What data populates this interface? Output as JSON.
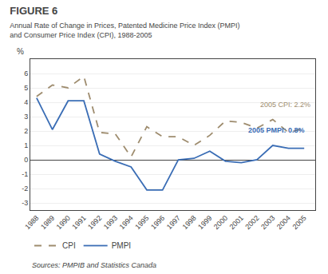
{
  "chart_data": {
    "type": "line",
    "title": "FIGURE 6",
    "subtitle": [
      "Annual Rate of Change in Prices, Patented Medicine Price Index (PMPI)",
      "and Consumer Price Index (CPI), 1988-2005"
    ],
    "ylabel": "%",
    "x": [
      1988,
      1989,
      1990,
      1991,
      1992,
      1993,
      1994,
      1995,
      1996,
      1997,
      1998,
      1999,
      2000,
      2001,
      2002,
      2003,
      2004,
      2005
    ],
    "series": [
      {
        "name": "CPI",
        "color": "#9e8c6e",
        "line_style": "dashed",
        "values": [
          4.4,
          5.2,
          5.0,
          5.8,
          1.9,
          1.8,
          0.2,
          2.3,
          1.6,
          1.6,
          1.0,
          1.7,
          2.7,
          2.6,
          2.2,
          2.8,
          1.9,
          2.2
        ]
      },
      {
        "name": "PMPI",
        "color": "#3a6db5",
        "line_style": "solid",
        "values": [
          4.3,
          2.1,
          4.1,
          4.1,
          0.4,
          -0.1,
          -0.5,
          -2.1,
          -2.1,
          0.0,
          0.1,
          0.6,
          -0.1,
          -0.2,
          0.0,
          1.0,
          0.8,
          0.8
        ]
      }
    ],
    "xlim": [
      1987.6,
      2005.7
    ],
    "xticks": [
      1988,
      1989,
      1990,
      1991,
      1992,
      1993,
      1994,
      1995,
      1996,
      1997,
      1998,
      1999,
      2000,
      2001,
      2002,
      2003,
      2004,
      2005
    ],
    "ylim": [
      -3.5,
      7.0
    ],
    "yticks": [
      -3,
      -2,
      -1,
      0,
      1,
      2,
      3,
      4,
      5,
      6
    ],
    "annotations": [
      "2005 CPI: 2.2%",
      "2005 PMPI: 0.8%"
    ],
    "source": "Sources: PMPIB and Statistics Canada",
    "grid": true,
    "legend": "bottom"
  }
}
